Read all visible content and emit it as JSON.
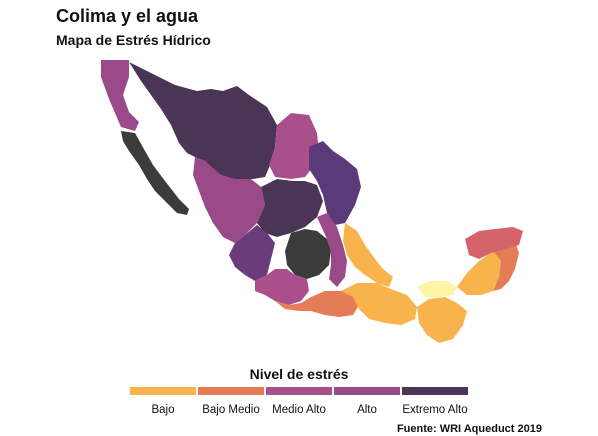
{
  "title": "Colima y el agua",
  "subtitle": "Mapa de Estrés Hídrico",
  "legend": {
    "title": "Nivel de estrés",
    "items": [
      {
        "label": "Bajo",
        "color": "#f8b34d"
      },
      {
        "label": "Bajo Medio",
        "color": "#e57c57"
      },
      {
        "label": "Medio Alto",
        "color": "#a9508c"
      },
      {
        "label": "Alto",
        "color": "#9a4a88"
      },
      {
        "label": "Extremo Alto",
        "color": "#4a3556"
      }
    ]
  },
  "source": "Fuente: WRI Aqueduct 2019",
  "map_colors": {
    "extremo_alto_dark": "#3b3b3b",
    "lowest": "#fff4a8"
  }
}
